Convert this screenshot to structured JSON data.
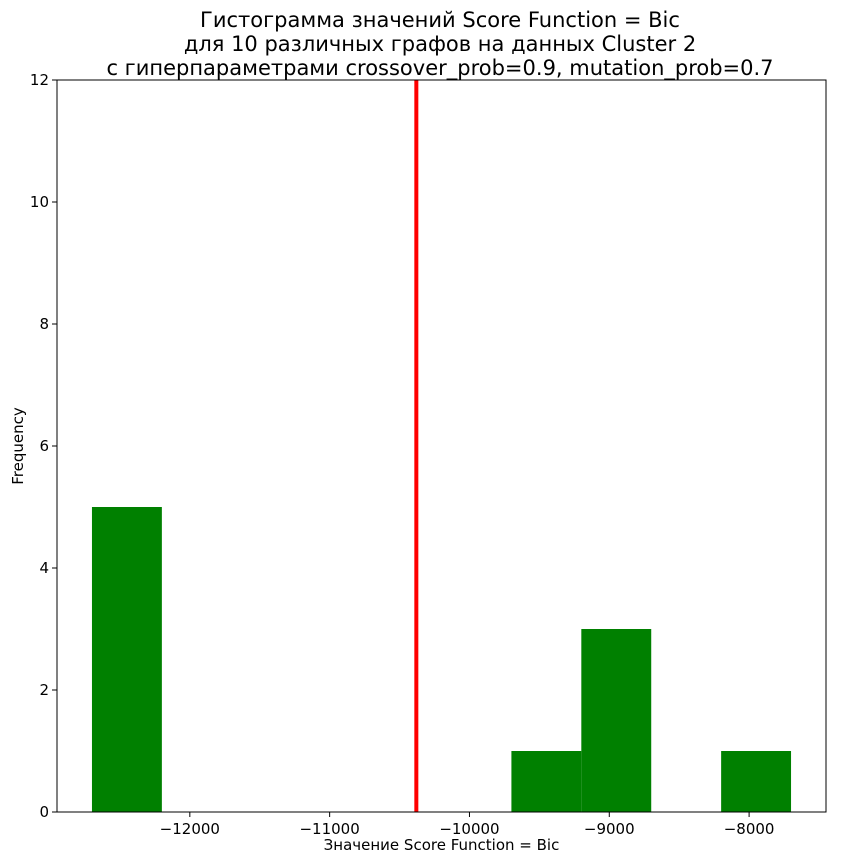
{
  "chart_data": {
    "type": "bar",
    "subtype": "histogram",
    "title": [
      "Гистограмма значений Score Function = Bic",
      "для 10 различных графов на данных Cluster 2",
      "с гиперпараметрами crossover_prob=0.9, mutation_prob=0.7"
    ],
    "xlabel": "Значение Score Function = Bic",
    "ylabel": "Frequency",
    "xlim": [
      -12950,
      -7450
    ],
    "ylim": [
      0,
      12
    ],
    "xticks": [
      -12000,
      -11000,
      -10000,
      -9000,
      -8000
    ],
    "xtick_labels": [
      "−12000",
      "−11000",
      "−10000",
      "−9000",
      "−8000"
    ],
    "yticks": [
      0,
      2,
      4,
      6,
      8,
      10,
      12
    ],
    "ytick_labels": [
      "0",
      "2",
      "4",
      "6",
      "8",
      "10",
      "12"
    ],
    "bin_edges": [
      -12700,
      -12200,
      -11700,
      -11200,
      -10700,
      -10200,
      -9700,
      -9200,
      -8700,
      -8200,
      -7700
    ],
    "counts": [
      5,
      0,
      0,
      0,
      0,
      0,
      1,
      3,
      0,
      1
    ],
    "bar_color": "#008000",
    "reference_line": {
      "x": -10380,
      "color": "#ff0000"
    },
    "grid": false,
    "legend": "none"
  }
}
